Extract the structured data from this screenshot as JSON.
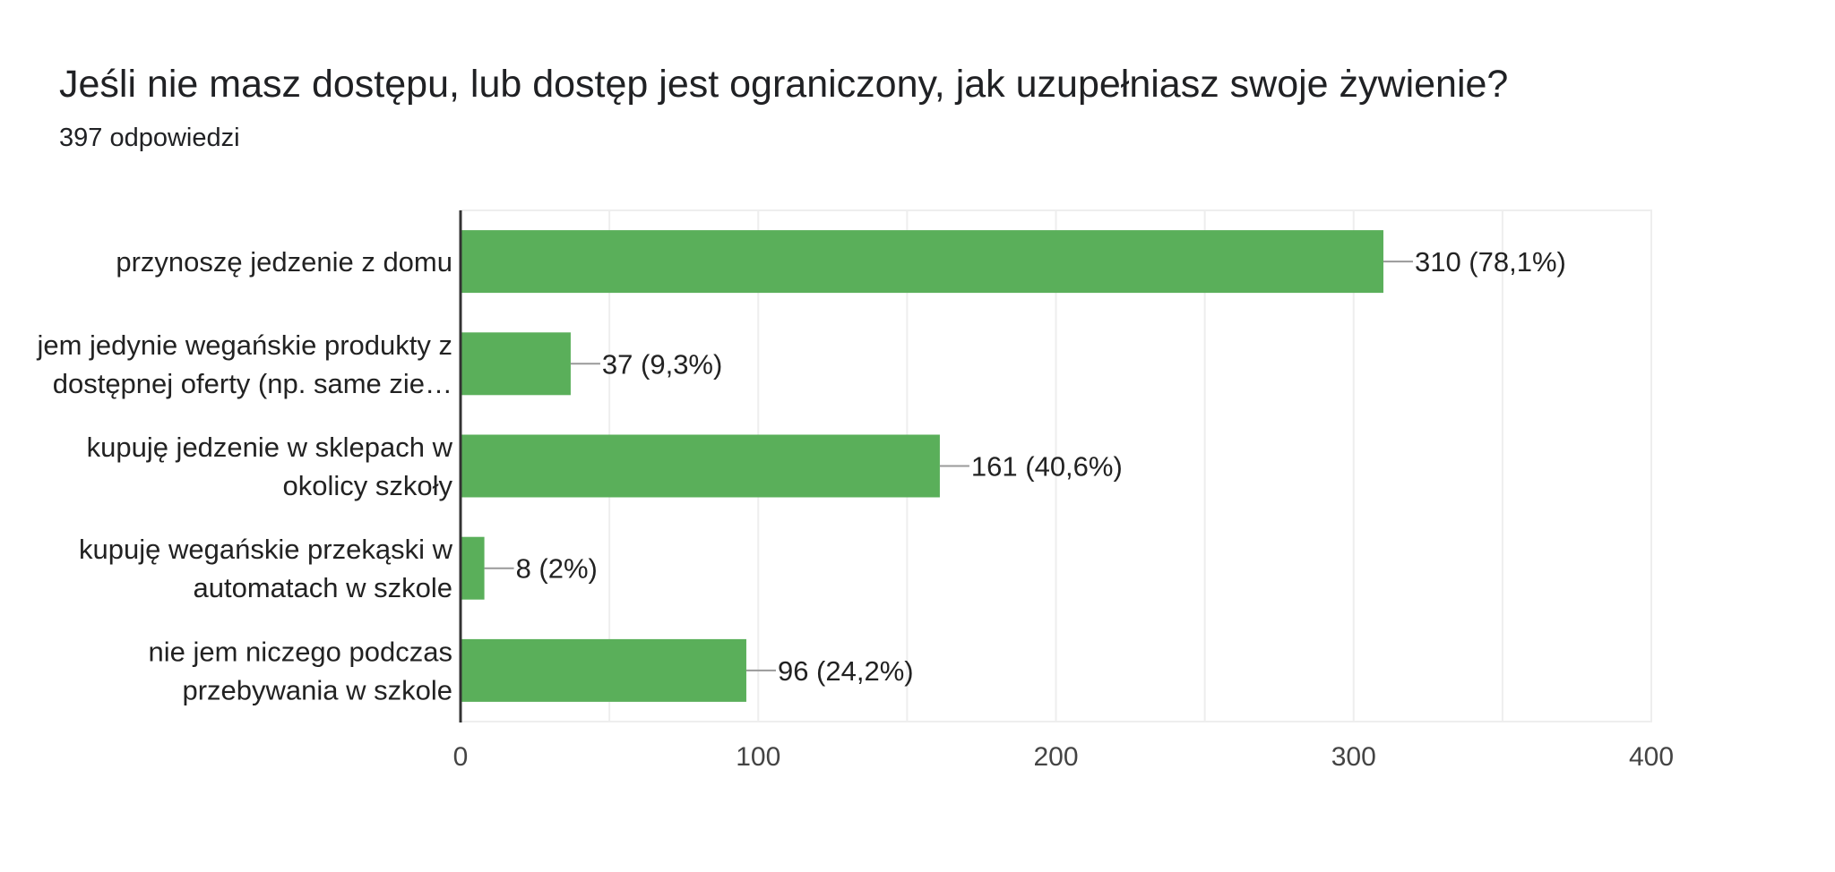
{
  "header": {
    "question": "Jeśli nie masz dostępu, lub dostęp jest ograniczony, jak uzupełniasz swoje żywienie?",
    "response_count": "397 odpowiedzi"
  },
  "colors": {
    "bar": "#5aaf5a",
    "grid": "#eeeeee",
    "axis": "#333333",
    "text": "#222222",
    "tick_text": "#444444",
    "leader": "#999999"
  },
  "chart_data": {
    "type": "bar",
    "orientation": "horizontal",
    "categories": [
      [
        "przynoszę jedzenie z domu"
      ],
      [
        "jem jedynie wegańskie produkty z",
        "dostępnej oferty (np. same zie…"
      ],
      [
        "kupuję jedzenie w sklepach w",
        "okolicy szkoły"
      ],
      [
        "kupuję wegańskie przekąski w",
        "automatach w szkole"
      ],
      [
        "nie jem niczego podczas",
        "przebywania w szkole"
      ]
    ],
    "values": [
      310,
      37,
      161,
      8,
      96
    ],
    "data_labels": [
      "310 (78,1%)",
      "37 (9,3%)",
      "161 (40,6%)",
      "8 (2%)",
      "96 (24,2%)"
    ],
    "xlim": [
      0,
      400
    ],
    "x_ticks": [
      0,
      100,
      200,
      300,
      400
    ],
    "x_tick_labels": [
      "0",
      "100",
      "200",
      "300",
      "400"
    ],
    "grid": true
  }
}
